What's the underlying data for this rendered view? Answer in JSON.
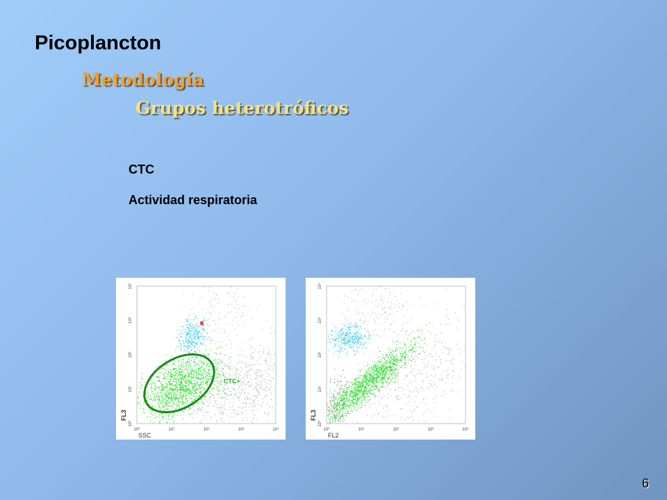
{
  "header": {
    "title": "Picoplancton",
    "subtitle": "Metodología",
    "section": "Grupos heterotróficos"
  },
  "items": [
    "CTC",
    "Actividad respiratoria"
  ],
  "plots": [
    {
      "y_label": "FL3",
      "x_label": "SSC",
      "gate_label": "CTC+",
      "axis_ticks": [
        "10⁰",
        "10¹",
        "10²",
        "10³",
        "10⁴"
      ]
    },
    {
      "y_label": "FL3",
      "x_label": "FL2",
      "axis_ticks": [
        "10⁰",
        "10¹",
        "10²",
        "10³",
        "10⁴"
      ]
    }
  ],
  "page_number": "6"
}
